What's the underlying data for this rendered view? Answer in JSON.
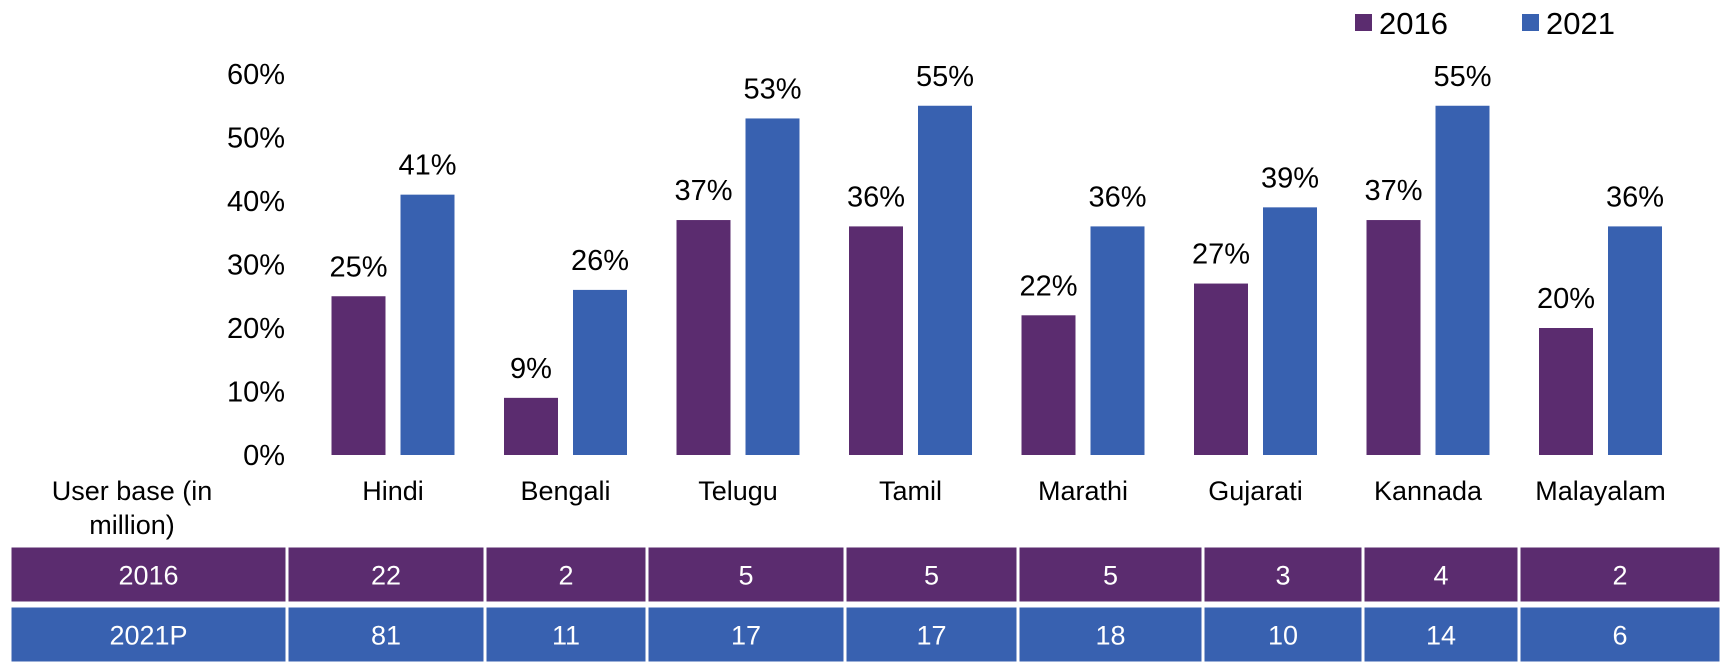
{
  "chart_data": {
    "type": "bar",
    "categories": [
      "Hindi",
      "Bengali",
      "Telugu",
      "Tamil",
      "Marathi",
      "Gujarati",
      "Kannada",
      "Malayalam"
    ],
    "series": [
      {
        "name": "2016",
        "values": [
          25,
          9,
          37,
          36,
          22,
          27,
          37,
          20
        ],
        "labels": [
          "25%",
          "9%",
          "37%",
          "36%",
          "22%",
          "27%",
          "37%",
          "20%"
        ]
      },
      {
        "name": "2021",
        "values": [
          41,
          26,
          53,
          55,
          36,
          39,
          55,
          36
        ],
        "labels": [
          "41%",
          "26%",
          "53%",
          "55%",
          "36%",
          "39%",
          "55%",
          "36%"
        ]
      }
    ],
    "yticks": [
      "0%",
      "10%",
      "20%",
      "30%",
      "40%",
      "50%",
      "60%"
    ],
    "ylim": [
      0,
      60
    ],
    "legend_position": "top-right",
    "colors": {
      "2016": "#5b2c6f",
      "2021": "#3861b0"
    },
    "table": {
      "header": "User base (in million)",
      "rows": [
        {
          "label": "2016",
          "values": [
            "22",
            "2",
            "5",
            "5",
            "5",
            "3",
            "4",
            "2"
          ],
          "color": "#5b2c6f"
        },
        {
          "label": "2021P",
          "values": [
            "81",
            "11",
            "17",
            "17",
            "18",
            "10",
            "14",
            "6"
          ],
          "color": "#3861b0"
        }
      ]
    }
  }
}
